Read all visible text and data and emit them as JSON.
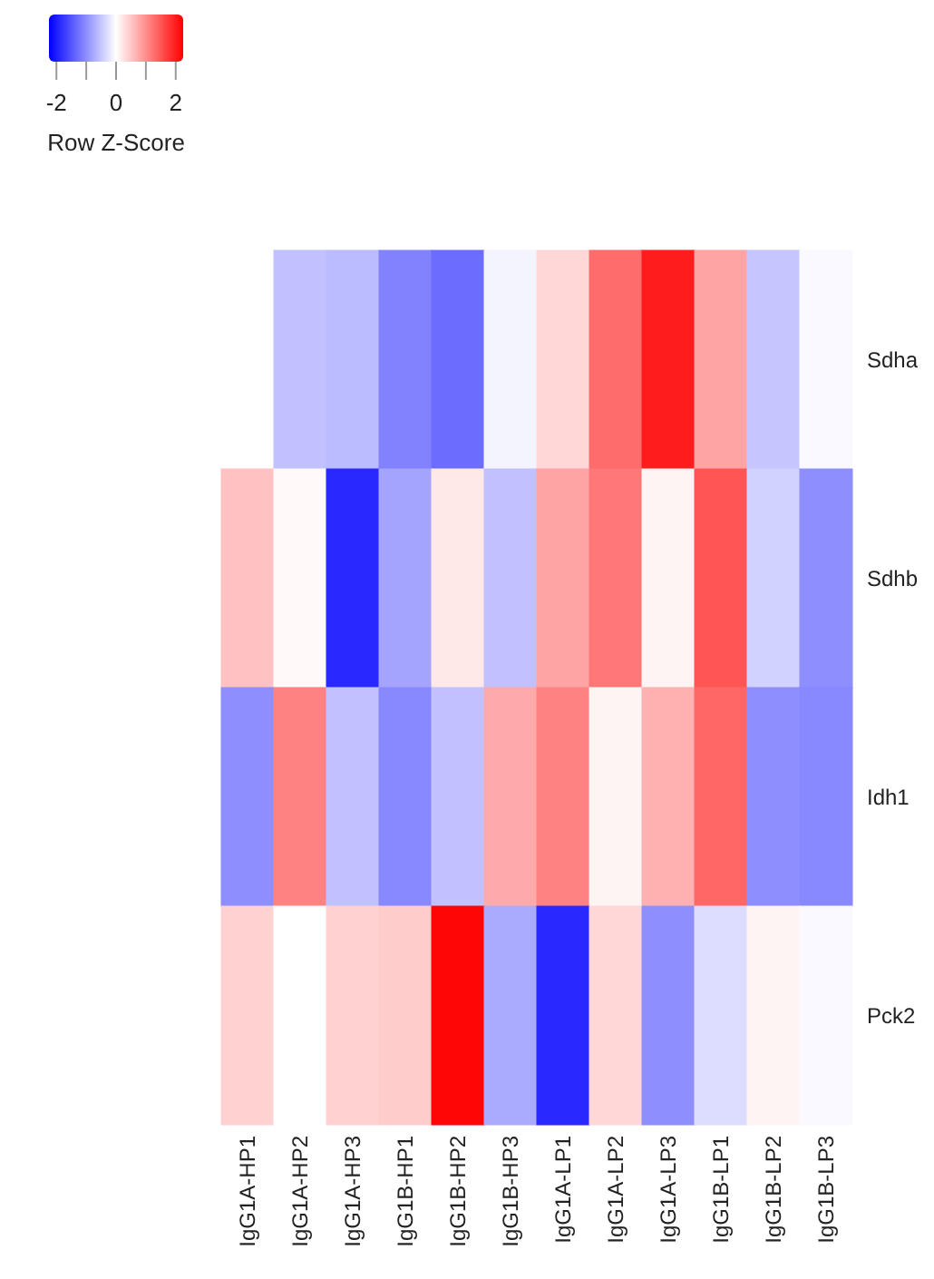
{
  "chart_data": {
    "type": "heatmap",
    "clabel": "Row Z-Score",
    "categories": [
      "IgG1A-HP1",
      "IgG1A-HP2",
      "IgG1A-HP3",
      "IgG1B-HP1",
      "IgG1B-HP2",
      "IgG1B-HP3",
      "IgG1A-LP1",
      "IgG1A-LP2",
      "IgG1A-LP3",
      "IgG1B-LP1",
      "IgG1B-LP2",
      "IgG1B-LP3"
    ],
    "y_categories": [
      "Sdha",
      "Sdhb",
      "Idh1",
      "Pck2"
    ],
    "cells": [
      [
        null,
        -0.55,
        -0.6,
        -1.1,
        -1.3,
        -0.1,
        0.35,
        1.3,
        2.0,
        0.8,
        -0.5,
        -0.05
      ],
      [
        0.55,
        0.05,
        -1.9,
        -0.8,
        0.2,
        -0.55,
        0.8,
        1.2,
        0.1,
        1.5,
        -0.4,
        -1.0
      ],
      [
        -1.0,
        1.1,
        -0.55,
        -1.05,
        -0.55,
        0.75,
        1.1,
        0.1,
        0.7,
        1.35,
        -1.0,
        -1.05
      ],
      [
        0.4,
        0,
        0.4,
        0.45,
        2.2,
        -0.75,
        -1.9,
        0.35,
        -1.0,
        -0.3,
        0.1,
        -0.05
      ]
    ],
    "clim": [
      -2.25,
      2.25
    ],
    "cticks": [
      -2,
      {
        "value": -1,
        "label": null
      },
      0,
      {
        "value": 1,
        "label": null
      },
      2
    ]
  }
}
